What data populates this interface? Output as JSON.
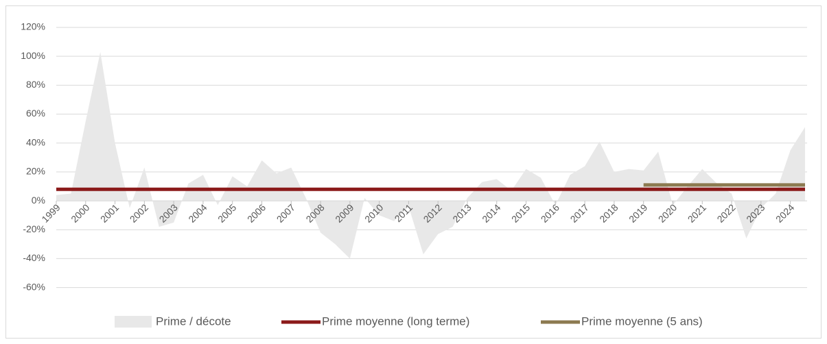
{
  "chart_data": {
    "type": "area",
    "x": [
      1999,
      1999.5,
      2000,
      2000.5,
      2001,
      2001.5,
      2002,
      2002.5,
      2003,
      2003.5,
      2004,
      2004.5,
      2005,
      2005.5,
      2006,
      2006.5,
      2007,
      2007.5,
      2008,
      2008.5,
      2009,
      2009.5,
      2010,
      2010.5,
      2011,
      2011.5,
      2012,
      2012.5,
      2013,
      2013.5,
      2014,
      2014.5,
      2015,
      2015.5,
      2016,
      2016.5,
      2017,
      2017.5,
      2018,
      2018.5,
      2019,
      2019.5,
      2020,
      2020.5,
      2021,
      2021.5,
      2022,
      2022.5,
      2023,
      2023.5,
      2024,
      2024.5
    ],
    "series": [
      {
        "name": "Prime / décote",
        "color": "#e8e8e8",
        "values": [
          4,
          5,
          55,
          103,
          40,
          -5,
          23,
          -18,
          -15,
          12,
          18,
          -3,
          17,
          10,
          28,
          19,
          23,
          2,
          -22,
          -30,
          -40,
          2,
          -10,
          -14,
          -4,
          -37,
          -23,
          -18,
          2,
          13,
          15,
          7,
          22,
          16,
          -3,
          18,
          24,
          41,
          20,
          22,
          21,
          34,
          -3,
          10,
          22,
          12,
          5,
          -26,
          -5,
          5,
          35,
          51
        ]
      },
      {
        "name": "Prime moyenne (long terme)",
        "color": "#8b1a1a",
        "x": [
          1999,
          2024.5
        ],
        "values": [
          8,
          8
        ]
      },
      {
        "name": "Prime moyenne (5 ans)",
        "color": "#8c7a50",
        "x": [
          2019,
          2024.5
        ],
        "values": [
          11,
          11
        ]
      }
    ],
    "xlim": [
      1999,
      2024.5
    ],
    "xticks": [
      1999,
      2000,
      2001,
      2002,
      2003,
      2004,
      2005,
      2006,
      2007,
      2008,
      2009,
      2010,
      2011,
      2012,
      2013,
      2014,
      2015,
      2016,
      2017,
      2018,
      2019,
      2020,
      2021,
      2022,
      2023,
      2024
    ],
    "ylim": [
      -60,
      120
    ],
    "yticks": [
      {
        "value": -60,
        "label": "-60%"
      },
      {
        "value": -40,
        "label": "-40%"
      },
      {
        "value": -20,
        "label": "-20%"
      },
      {
        "value": 0,
        "label": "0%"
      },
      {
        "value": 20,
        "label": "20%"
      },
      {
        "value": 40,
        "label": "40%"
      },
      {
        "value": 60,
        "label": "60%"
      },
      {
        "value": 80,
        "label": "80%"
      },
      {
        "value": 100,
        "label": "100%"
      },
      {
        "value": 120,
        "label": "120%"
      }
    ],
    "grid": true,
    "legend": "bottom"
  }
}
